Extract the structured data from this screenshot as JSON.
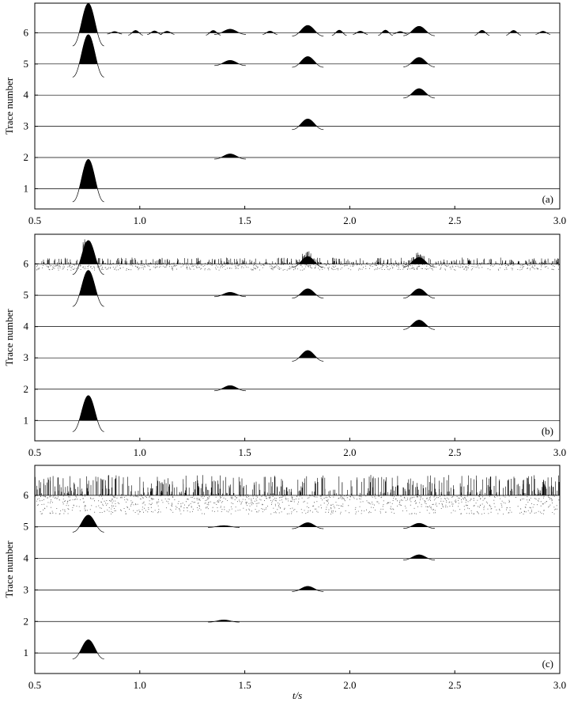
{
  "chart_data": [
    {
      "panel": "a",
      "type": "line",
      "panel_label": "(a)",
      "xlabel": "",
      "ylabel": "Trace number",
      "xlim": [
        0.5,
        3.0
      ],
      "ylim": [
        0.35,
        6.95
      ],
      "xticks": [
        "0.5",
        "1.0",
        "1.5",
        "2.0",
        "2.5",
        "3.0"
      ],
      "yticks": [
        "1",
        "2",
        "3",
        "4",
        "5",
        "6"
      ],
      "traces": [
        {
          "trace": 1,
          "events": [
            {
              "t": 0.755,
              "amp": 1.0
            }
          ]
        },
        {
          "trace": 2,
          "events": [
            {
              "t": 1.43,
              "amp": 0.12
            }
          ]
        },
        {
          "trace": 3,
          "events": [
            {
              "t": 1.8,
              "amp": 0.25
            }
          ]
        },
        {
          "trace": 4,
          "events": [
            {
              "t": 2.33,
              "amp": 0.22
            }
          ]
        },
        {
          "trace": 5,
          "events": [
            {
              "t": 0.755,
              "amp": 1.0
            },
            {
              "t": 1.43,
              "amp": 0.12
            },
            {
              "t": 1.8,
              "amp": 0.25
            },
            {
              "t": 2.33,
              "amp": 0.22
            }
          ]
        },
        {
          "trace": 6,
          "events": [
            {
              "t": 0.755,
              "amp": 1.0
            },
            {
              "t": 1.43,
              "amp": 0.12
            },
            {
              "t": 1.8,
              "amp": 0.25
            },
            {
              "t": 2.33,
              "amp": 0.22
            }
          ],
          "ripple": true,
          "noise": 0
        }
      ]
    },
    {
      "panel": "b",
      "type": "line",
      "panel_label": "(b)",
      "xlabel": "",
      "ylabel": "Trace number",
      "xlim": [
        0.5,
        3.0
      ],
      "ylim": [
        0.35,
        6.95
      ],
      "xticks": [
        "0.5",
        "1.0",
        "1.5",
        "2.0",
        "2.5",
        "3.0"
      ],
      "yticks": [
        "1",
        "2",
        "3",
        "4",
        "5",
        "6"
      ],
      "traces": [
        {
          "trace": 1,
          "events": [
            {
              "t": 0.755,
              "amp": 0.85
            }
          ]
        },
        {
          "trace": 2,
          "events": [
            {
              "t": 1.43,
              "amp": 0.12
            }
          ]
        },
        {
          "trace": 3,
          "events": [
            {
              "t": 1.8,
              "amp": 0.25
            }
          ]
        },
        {
          "trace": 4,
          "events": [
            {
              "t": 2.33,
              "amp": 0.22
            }
          ]
        },
        {
          "trace": 5,
          "events": [
            {
              "t": 0.755,
              "amp": 0.85
            },
            {
              "t": 1.43,
              "amp": 0.1
            },
            {
              "t": 1.8,
              "amp": 0.22
            },
            {
              "t": 2.33,
              "amp": 0.22
            }
          ]
        },
        {
          "trace": 6,
          "events": [
            {
              "t": 0.755,
              "amp": 0.8
            },
            {
              "t": 1.8,
              "amp": 0.25
            },
            {
              "t": 2.33,
              "amp": 0.22
            }
          ],
          "ripple": false,
          "noise": 0.22
        }
      ]
    },
    {
      "panel": "c",
      "type": "line",
      "panel_label": "(c)",
      "xlabel": "t/s",
      "ylabel": "Trace number",
      "xlim": [
        0.5,
        3.0
      ],
      "ylim": [
        0.35,
        6.95
      ],
      "xticks": [
        "0.5",
        "1.0",
        "1.5",
        "2.0",
        "2.5",
        "3.0"
      ],
      "yticks": [
        "1",
        "2",
        "3",
        "4",
        "5",
        "6"
      ],
      "traces": [
        {
          "trace": 1,
          "events": [
            {
              "t": 0.755,
              "amp": 0.45
            }
          ]
        },
        {
          "trace": 2,
          "events": [
            {
              "t": 1.4,
              "amp": 0.05
            }
          ]
        },
        {
          "trace": 3,
          "events": [
            {
              "t": 1.8,
              "amp": 0.12
            }
          ]
        },
        {
          "trace": 4,
          "events": [
            {
              "t": 2.33,
              "amp": 0.12
            }
          ]
        },
        {
          "trace": 5,
          "events": [
            {
              "t": 0.755,
              "amp": 0.4
            },
            {
              "t": 1.4,
              "amp": 0.04
            },
            {
              "t": 1.8,
              "amp": 0.14
            },
            {
              "t": 2.33,
              "amp": 0.12
            }
          ]
        },
        {
          "trace": 6,
          "events": [],
          "ripple": false,
          "noise": 0.7
        }
      ]
    }
  ]
}
